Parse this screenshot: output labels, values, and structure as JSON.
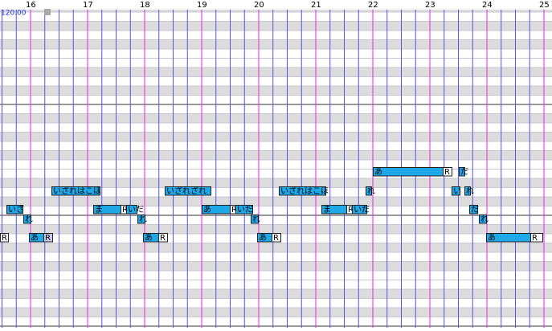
{
  "header": {
    "tempo": "120.00",
    "measures": [
      "16",
      "17",
      "18",
      "19",
      "20",
      "21",
      "22",
      "23",
      "24",
      "25"
    ]
  },
  "notes": [
    {
      "lyric": "あ"
    },
    {
      "lyric": "R"
    },
    {
      "lyric": "だ"
    },
    {
      "lyric": "いざれはこほ"
    },
    {
      "lyric": "いざれざれ"
    },
    {
      "lyric": "いざれはこほ"
    },
    {
      "lyric": "れ"
    },
    {
      "lyric": "い"
    },
    {
      "lyric": "れ"
    },
    {
      "lyric": "いざ"
    },
    {
      "lyric": "ま"
    },
    {
      "lyric": "R"
    },
    {
      "lyric": "いだ"
    },
    {
      "lyric": "あ"
    },
    {
      "lyric": "R"
    },
    {
      "lyric": "いだ"
    },
    {
      "lyric": "ま"
    },
    {
      "lyric": "R"
    },
    {
      "lyric": "いだ"
    },
    {
      "lyric": "だ"
    },
    {
      "lyric": "れ"
    },
    {
      "lyric": "れ"
    },
    {
      "lyric": "れ"
    },
    {
      "lyric": "れ"
    },
    {
      "lyric": "R"
    },
    {
      "lyric": "あ"
    },
    {
      "lyric": "R"
    },
    {
      "lyric": "あ"
    },
    {
      "lyric": "R"
    },
    {
      "lyric": "あ"
    },
    {
      "lyric": "R"
    },
    {
      "lyric": "あ"
    },
    {
      "lyric": "R"
    }
  ]
}
